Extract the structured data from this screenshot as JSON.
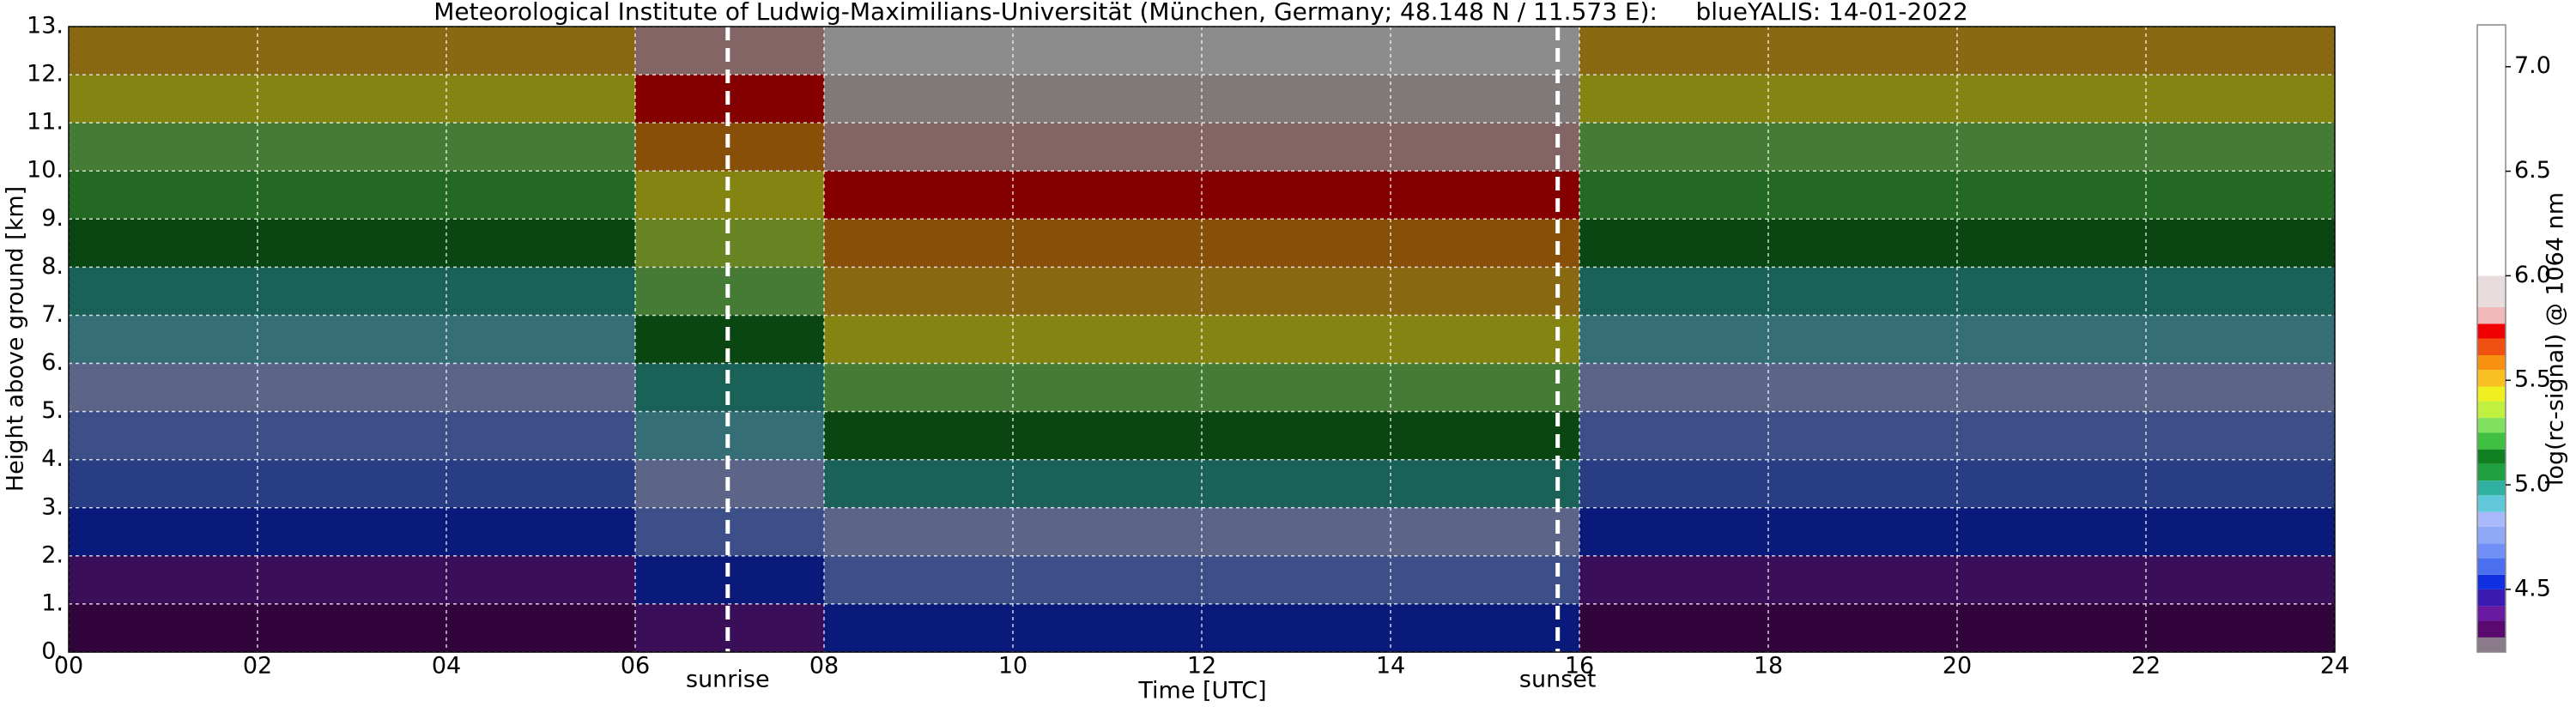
{
  "chart_data": {
    "type": "heatmap",
    "title": "Meteorological Institute of Ludwig-Maximilians-Universität (München, Germany; 48.148 N / 11.573 E):     blueYALIS: 14-01-2022",
    "xlabel": "Time [UTC]",
    "ylabel": "Height above ground [km]",
    "colorbar_label": "log(rc-signal) @ 1064 nm",
    "xlim": [
      0,
      24
    ],
    "xticks": [
      {
        "value": 0,
        "label": "00"
      },
      {
        "value": 2,
        "label": "02"
      },
      {
        "value": 4,
        "label": "04"
      },
      {
        "value": 6,
        "label": "06"
      },
      {
        "value": 8,
        "label": "08"
      },
      10,
      12,
      14,
      16,
      18,
      20,
      22,
      24
    ],
    "ylim": [
      0,
      13
    ],
    "yticks": [
      {
        "value": 0,
        "label": "0."
      },
      {
        "value": 1,
        "label": "1."
      },
      {
        "value": 2,
        "label": "2."
      },
      {
        "value": 3,
        "label": "3."
      },
      {
        "value": 4,
        "label": "4."
      },
      {
        "value": 5,
        "label": "5."
      },
      {
        "value": 6,
        "label": "6."
      },
      {
        "value": 7,
        "label": "7."
      },
      {
        "value": 8,
        "label": "8."
      },
      {
        "value": 9,
        "label": "9."
      },
      {
        "value": 10,
        "label": "10."
      },
      {
        "value": 11,
        "label": "11."
      },
      {
        "value": 12,
        "label": "12."
      },
      {
        "value": 13,
        "label": "13."
      }
    ],
    "grid": true,
    "xbins": [
      0,
      2,
      4,
      6,
      8,
      10,
      12,
      14,
      16,
      18,
      20,
      22,
      24
    ],
    "ybins": [
      0,
      1,
      2,
      3,
      4,
      5,
      6,
      7,
      8,
      9,
      10,
      11,
      12,
      13
    ],
    "z": [
      [
        4.3,
        4.3,
        4.3,
        4.4,
        4.5,
        4.5,
        4.5,
        4.5,
        4.3,
        4.3,
        4.3,
        4.3
      ],
      [
        4.4,
        4.4,
        4.4,
        4.5,
        4.65,
        4.65,
        4.65,
        4.65,
        4.4,
        4.4,
        4.4,
        4.4
      ],
      [
        4.5,
        4.5,
        4.5,
        4.65,
        4.8,
        4.8,
        4.8,
        4.8,
        4.5,
        4.5,
        4.5,
        4.5
      ],
      [
        4.6,
        4.6,
        4.6,
        4.8,
        4.95,
        4.95,
        4.95,
        4.95,
        4.6,
        4.6,
        4.6,
        4.6
      ],
      [
        4.7,
        4.7,
        4.7,
        4.9,
        5.1,
        5.1,
        5.1,
        5.1,
        4.7,
        4.7,
        4.7,
        4.7
      ],
      [
        4.8,
        4.8,
        4.8,
        5.0,
        5.25,
        5.25,
        5.25,
        5.25,
        4.8,
        4.8,
        4.8,
        4.8
      ],
      [
        4.9,
        4.9,
        4.9,
        5.15,
        5.4,
        5.4,
        5.4,
        5.4,
        4.9,
        4.9,
        4.9,
        4.9
      ],
      [
        5.0,
        5.0,
        5.0,
        5.25,
        5.5,
        5.5,
        5.5,
        5.5,
        5.0,
        5.0,
        5.0,
        5.0
      ],
      [
        5.1,
        5.1,
        5.1,
        5.35,
        5.6,
        5.6,
        5.6,
        5.6,
        5.1,
        5.1,
        5.1,
        5.1
      ],
      [
        5.2,
        5.2,
        5.2,
        5.45,
        5.7,
        5.7,
        5.7,
        5.7,
        5.2,
        5.2,
        5.2,
        5.2
      ],
      [
        5.3,
        5.3,
        5.3,
        5.55,
        5.8,
        5.8,
        5.8,
        5.8,
        5.3,
        5.3,
        5.3,
        5.3
      ],
      [
        5.4,
        5.4,
        5.4,
        5.7,
        5.95,
        5.95,
        5.95,
        5.95,
        5.4,
        5.4,
        5.4,
        5.4
      ],
      [
        5.5,
        5.5,
        5.5,
        5.8,
        6.1,
        6.1,
        6.1,
        6.1,
        5.5,
        5.5,
        5.5,
        5.5
      ]
    ],
    "clim": [
      4.2,
      7.2
    ],
    "cticks": [
      4.5,
      {
        "value": 5,
        "label": "5.0"
      },
      5.5,
      {
        "value": 6,
        "label": "6.0"
      },
      6.5,
      {
        "value": 7,
        "label": "7.0"
      }
    ],
    "levels": [
      4.2,
      4.27,
      4.35,
      4.42,
      4.5,
      4.57,
      4.65,
      4.72,
      4.8,
      4.87,
      4.95,
      5.02,
      5.1,
      5.17,
      5.25,
      5.32,
      5.4,
      5.47,
      5.55,
      5.62,
      5.7,
      5.77,
      5.85,
      6.0,
      7.2
    ],
    "colors": [
      "#8a7a8a",
      "#5a0a6e",
      "#6a1aa0",
      "#3a1ab0",
      "#1030e0",
      "#4a70f0",
      "#7090f8",
      "#90a8f8",
      "#a8b8f8",
      "#60c8d8",
      "#30b0a0",
      "#20a040",
      "#108020",
      "#40c040",
      "#80e060",
      "#c0f040",
      "#f0f020",
      "#f8c020",
      "#f89010",
      "#f05010",
      "#f00000",
      "#f0b8b8",
      "#e8dcdc",
      "#ffffff"
    ],
    "annotations": [
      {
        "x": 6.98,
        "label": "sunrise"
      },
      {
        "x": 15.77,
        "label": "sunset"
      }
    ]
  }
}
